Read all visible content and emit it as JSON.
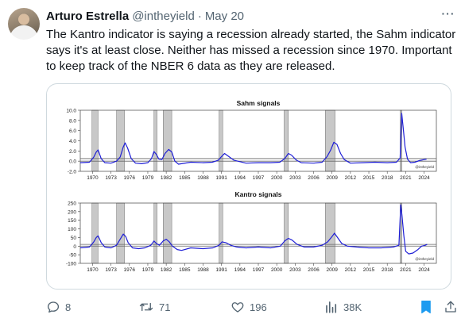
{
  "tweet": {
    "author_name": "Arturo Estrella",
    "handle": "@intheyield",
    "separator": "·",
    "date": "May 20",
    "text": "The Kantro indicator is saying a recession already started, the Sahm indicator says it's at least close. Neither has missed a recession since 1970. Important to keep track of the NBER 6 data as they are released."
  },
  "actions": {
    "replies": "8",
    "retweets": "71",
    "likes": "196",
    "views": "38K"
  },
  "icons": {
    "reply": "reply-icon",
    "retweet": "retweet-icon",
    "like": "heart-icon",
    "views": "views-icon",
    "bookmark": "bookmark-icon",
    "share": "share-icon",
    "more": "more-icon"
  },
  "colors": {
    "bookmark_active": "#1d9bf0",
    "series_line": "#1f1fd6",
    "recession_shade": "#c8c8c8",
    "text_secondary": "#536471"
  },
  "chart_data": [
    {
      "type": "line",
      "title": "Sahm signals",
      "watermark": "@intheyield",
      "xlim": [
        1968,
        2026
      ],
      "ylim": [
        -2,
        10
      ],
      "yticks": [
        "10.0",
        "8.0",
        "6.0",
        "4.0",
        "2.0",
        "0.0",
        "-2.0"
      ],
      "ytick_values": [
        10,
        8,
        6,
        4,
        2,
        0,
        -2
      ],
      "xticks": [
        "1970",
        "1973",
        "1976",
        "1979",
        "1982",
        "1985",
        "1988",
        "1991",
        "1994",
        "1997",
        "2000",
        "2003",
        "2006",
        "2009",
        "2012",
        "2015",
        "2018",
        "2021",
        "2024"
      ],
      "xtick_values": [
        1970,
        1973,
        1976,
        1979,
        1982,
        1985,
        1988,
        1991,
        1994,
        1997,
        2000,
        2003,
        2006,
        2009,
        2012,
        2015,
        2018,
        2021,
        2024
      ],
      "recessions": [
        [
          1969.9,
          1970.9
        ],
        [
          1973.9,
          1975.2
        ],
        [
          1980.0,
          1980.5
        ],
        [
          1981.5,
          1982.9
        ],
        [
          1990.6,
          1991.2
        ],
        [
          2001.2,
          2001.9
        ],
        [
          2007.9,
          2009.5
        ],
        [
          2020.1,
          2020.4
        ]
      ],
      "reference_lines": [
        0,
        0.5
      ],
      "series": [
        {
          "x": [
            1968,
            1969.5,
            1970.2,
            1970.6,
            1970.9,
            1971.4,
            1972,
            1973,
            1973.9,
            1974.5,
            1975.0,
            1975.3,
            1975.7,
            1976.3,
            1977,
            1978,
            1979,
            1979.6,
            1980.0,
            1980.4,
            1980.8,
            1981.3,
            1981.8,
            1982.4,
            1982.9,
            1983.4,
            1984,
            1986,
            1988,
            1989.5,
            1990.5,
            1991.0,
            1991.5,
            1992.2,
            1993,
            1995,
            1997,
            1999,
            2000.5,
            2001.3,
            2001.9,
            2002.4,
            2003.2,
            2004,
            2006,
            2007.4,
            2008.2,
            2008.8,
            2009.3,
            2009.8,
            2010.4,
            2011,
            2012,
            2014,
            2016,
            2018,
            2019.5,
            2020.1,
            2020.35,
            2020.6,
            2020.9,
            2021.3,
            2021.8,
            2022.5,
            2023.2,
            2024,
            2024.4
          ],
          "y": [
            -0.3,
            -0.2,
            0.8,
            1.8,
            2.2,
            0.5,
            -0.3,
            -0.4,
            0.0,
            0.8,
            2.8,
            3.6,
            2.6,
            0.5,
            -0.4,
            -0.5,
            -0.3,
            0.5,
            1.9,
            1.3,
            0.4,
            0.3,
            1.5,
            2.3,
            1.8,
            0.0,
            -0.6,
            -0.2,
            -0.3,
            -0.2,
            0.2,
            0.9,
            1.5,
            0.9,
            0.2,
            -0.4,
            -0.3,
            -0.3,
            -0.2,
            0.5,
            1.5,
            1.2,
            0.2,
            -0.3,
            -0.4,
            -0.2,
            0.9,
            2.2,
            3.7,
            3.3,
            1.5,
            0.3,
            -0.4,
            -0.3,
            -0.2,
            -0.3,
            -0.2,
            0.6,
            9.4,
            6.5,
            2.8,
            0.4,
            -0.3,
            -0.2,
            0.1,
            0.3,
            0.4
          ]
        }
      ]
    },
    {
      "type": "line",
      "title": "Kantro signals",
      "watermark": "@intheyield",
      "xlim": [
        1968,
        2026
      ],
      "ylim": [
        -100,
        250
      ],
      "yticks": [
        "250",
        "200",
        "150",
        "100",
        "50",
        "0",
        "-50",
        "-100"
      ],
      "ytick_values": [
        250,
        200,
        150,
        100,
        50,
        0,
        -50,
        -100
      ],
      "xticks": [
        "1970",
        "1973",
        "1976",
        "1979",
        "1982",
        "1985",
        "1988",
        "1991",
        "1994",
        "1997",
        "2000",
        "2003",
        "2006",
        "2009",
        "2012",
        "2015",
        "2018",
        "2021",
        "2024"
      ],
      "xtick_values": [
        1970,
        1973,
        1976,
        1979,
        1982,
        1985,
        1988,
        1991,
        1994,
        1997,
        2000,
        2003,
        2006,
        2009,
        2012,
        2015,
        2018,
        2021,
        2024
      ],
      "recessions": [
        [
          1969.9,
          1970.9
        ],
        [
          1973.9,
          1975.2
        ],
        [
          1980.0,
          1980.5
        ],
        [
          1981.5,
          1982.9
        ],
        [
          1990.6,
          1991.2
        ],
        [
          2001.2,
          2001.9
        ],
        [
          2007.9,
          2009.5
        ],
        [
          2020.1,
          2020.4
        ]
      ],
      "reference_lines": [
        0,
        10
      ],
      "series": [
        {
          "x": [
            1968,
            1969.5,
            1970.2,
            1970.6,
            1970.9,
            1971.4,
            1972,
            1973,
            1973.9,
            1974.5,
            1975.0,
            1975.4,
            1975.8,
            1976.5,
            1977.5,
            1978.5,
            1979.5,
            1980.0,
            1980.4,
            1980.9,
            1981.5,
            1982.0,
            1982.5,
            1983.0,
            1983.8,
            1984.5,
            1986,
            1988,
            1989.6,
            1990.6,
            1991.1,
            1991.7,
            1992.5,
            1993.5,
            1995,
            1997,
            1999,
            2000.6,
            2001.3,
            2001.9,
            2002.5,
            2003.3,
            2004.5,
            2006,
            2007.4,
            2008.3,
            2009.0,
            2009.4,
            2009.9,
            2010.6,
            2011.5,
            2013,
            2015,
            2017,
            2019,
            2019.9,
            2020.2,
            2020.4,
            2020.7,
            2021.0,
            2021.5,
            2022.2,
            2023.0,
            2023.6,
            2024.2,
            2024.5
          ],
          "y": [
            -10,
            -5,
            25,
            50,
            60,
            20,
            -5,
            -10,
            5,
            40,
            70,
            55,
            20,
            -10,
            -15,
            -10,
            5,
            30,
            15,
            5,
            30,
            40,
            25,
            0,
            -20,
            -25,
            -10,
            -15,
            -10,
            5,
            25,
            20,
            5,
            -5,
            -10,
            -5,
            -10,
            0,
            30,
            45,
            35,
            10,
            -5,
            -5,
            5,
            25,
            55,
            75,
            50,
            15,
            0,
            -5,
            -10,
            -10,
            -5,
            5,
            240,
            180,
            60,
            -30,
            -45,
            -40,
            -20,
            0,
            5,
            10
          ]
        }
      ]
    }
  ]
}
